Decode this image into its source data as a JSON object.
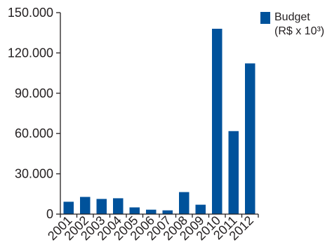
{
  "chart_data": {
    "type": "bar",
    "categories": [
      "2001",
      "2002",
      "2003",
      "2004",
      "2005",
      "2006",
      "2007",
      "2008",
      "2009",
      "2010",
      "2011",
      "2012"
    ],
    "series": [
      {
        "name": "Budget (R$ x 10³)",
        "values": [
          9200,
          12800,
          11300,
          11800,
          5000,
          3300,
          2800,
          16400,
          7000,
          138000,
          61800,
          112200
        ]
      }
    ],
    "y_ticks": [
      "0",
      "30.000",
      "60.000",
      "90.000",
      "120.000",
      "150.000"
    ],
    "ylim": [
      0,
      150000
    ],
    "grid": false,
    "legend": {
      "position": "top-right",
      "line1": "Budget",
      "line2": "(R$ x 10³)"
    },
    "colors": {
      "bar": "#00529b",
      "axis": "#231f20"
    }
  }
}
